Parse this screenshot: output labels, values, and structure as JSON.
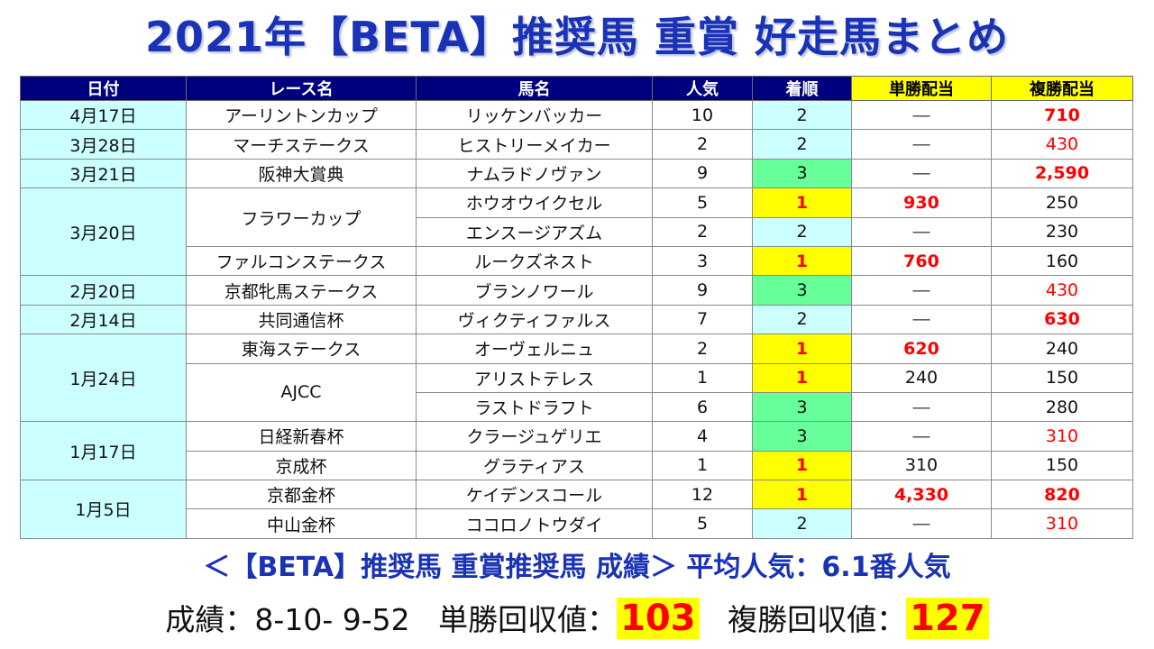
{
  "title": "2021年【BETA】推奨馬 重賞 好走馬まとめ",
  "headers": {
    "date": "日付",
    "race": "レース名",
    "horse": "馬名",
    "popularity": "人気",
    "rank": "着順",
    "win_payout": "単勝配当",
    "place_payout": "複勝配当"
  },
  "rows": [
    {
      "date": "4月17日",
      "race": "アーリントンカップ",
      "horse": "リッケンバッカー",
      "popularity": "10",
      "rank": "2",
      "win": "―",
      "place": "710"
    },
    {
      "date": "3月28日",
      "race": "マーチステークス",
      "horse": "ヒストリーメイカー",
      "popularity": "2",
      "rank": "2",
      "win": "―",
      "place": "430"
    },
    {
      "date": "3月21日",
      "race": "阪神大賞典",
      "horse": "ナムラドノヴァン",
      "popularity": "9",
      "rank": "3",
      "win": "―",
      "place": "2,590"
    },
    {
      "date": "3月20日",
      "race": "フラワーカップ",
      "horse": "ホウオウイクセル",
      "popularity": "5",
      "rank": "1",
      "win": "930",
      "place": "250"
    },
    {
      "date": "",
      "race": "",
      "horse": "エンスージアズム",
      "popularity": "2",
      "rank": "2",
      "win": "―",
      "place": "230"
    },
    {
      "date": "",
      "race": "ファルコンステークス",
      "horse": "ルークズネスト",
      "popularity": "3",
      "rank": "1",
      "win": "760",
      "place": "160"
    },
    {
      "date": "2月20日",
      "race": "京都牝馬ステークス",
      "horse": "ブランノワール",
      "popularity": "9",
      "rank": "3",
      "win": "―",
      "place": "430"
    },
    {
      "date": "2月14日",
      "race": "共同通信杯",
      "horse": "ヴィクティファルス",
      "popularity": "7",
      "rank": "2",
      "win": "―",
      "place": "630"
    },
    {
      "date": "1月24日",
      "race": "東海ステークス",
      "horse": "オーヴェルニュ",
      "popularity": "2",
      "rank": "1",
      "win": "620",
      "place": "240"
    },
    {
      "date": "",
      "race": "AJCC",
      "horse": "アリストテレス",
      "popularity": "1",
      "rank": "1",
      "win": "240",
      "place": "150"
    },
    {
      "date": "",
      "race": "",
      "horse": "ラストドラフト",
      "popularity": "6",
      "rank": "3",
      "win": "―",
      "place": "280"
    },
    {
      "date": "1月17日",
      "race": "日経新春杯",
      "horse": "クラージュゲリエ",
      "popularity": "4",
      "rank": "3",
      "win": "―",
      "place": "310"
    },
    {
      "date": "",
      "race": "京成杯",
      "horse": "グラティアス",
      "popularity": "1",
      "rank": "1",
      "win": "310",
      "place": "150"
    },
    {
      "date": "1月5日",
      "race": "京都金杯",
      "horse": "ケイデンスコール",
      "popularity": "12",
      "rank": "1",
      "win": "4,330",
      "place": "820"
    },
    {
      "date": "",
      "race": "中山金杯",
      "horse": "ココロノトウダイ",
      "popularity": "5",
      "rank": "2",
      "win": "―",
      "place": "310"
    }
  ],
  "summary": {
    "line1": "＜【BETA】推奨馬 重賞推奨馬 成績＞ 平均人気：6.1番人気",
    "record_label": "成績：8-10- 9-52",
    "win_label": "単勝回収値：",
    "win_value": "103",
    "place_label": "複勝回収値：",
    "place_value": "127"
  },
  "colors": {
    "title": "#1a32b4",
    "header_bg": "#00007f",
    "header_highlight": "#ffff00",
    "cell_cyan": "#ccffff",
    "rank_first": "#ffff00",
    "rank_third": "#66ff99",
    "accent_red": "#ff0000"
  }
}
